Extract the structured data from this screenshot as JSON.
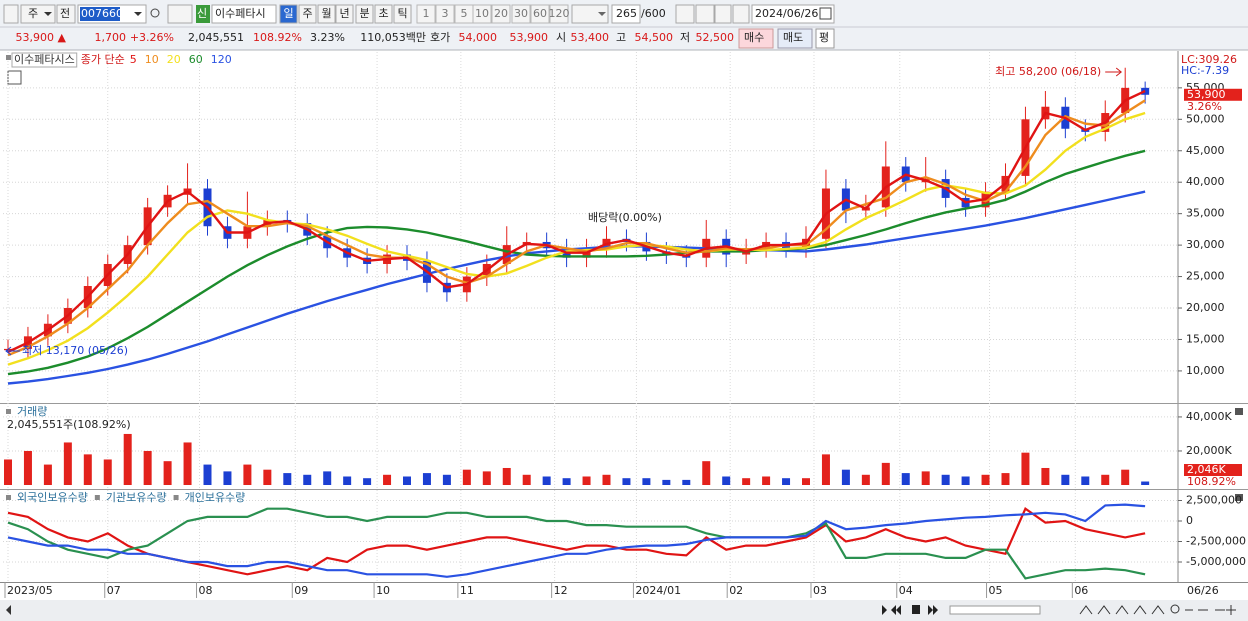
{
  "toolbar": {
    "period": "주",
    "prev": "전",
    "code": "007660",
    "new": "신",
    "name": "이수페타시",
    "timeframes": [
      "일",
      "주",
      "월",
      "년",
      "분",
      "초",
      "틱"
    ],
    "intervals": [
      "1",
      "3",
      "5",
      "10",
      "20",
      "30",
      "60",
      "120"
    ],
    "count": "265",
    "max": "/600",
    "date": "2024/06/26"
  },
  "quote": {
    "price": "53,900 ▲",
    "change": "1,700",
    "rate": "+3.26%",
    "volume": "2,045,551",
    "volume_ratio": "108.92%",
    "turnover_rate": "3.23%",
    "amount": "110,053백만",
    "ask_label": "호가",
    "ask": "54,000",
    "bid": "53,900",
    "open_label": "시",
    "open": "53,400",
    "high_label": "고",
    "high": "54,500",
    "low_label": "저",
    "low": "52,500",
    "buy": "매수",
    "sell": "매도",
    "avg": "평"
  },
  "chart_data": [
    {
      "type": "candlestick",
      "title": "이수페타시스",
      "legend_title": "종가 단순",
      "open": [
        13300,
        13500,
        15500,
        17500,
        20000,
        23500,
        27000,
        30000,
        36000,
        38000,
        39000,
        33000,
        31000,
        33000,
        34000,
        33500,
        31500,
        29500,
        28000,
        27000,
        28500,
        27500,
        24000,
        22500,
        25000,
        27000,
        30000,
        30500,
        29500,
        28000,
        29500,
        31000,
        30500,
        29000,
        28500,
        28000,
        31000,
        28500,
        29500,
        30500,
        29500,
        31000,
        39000,
        35500,
        36000,
        42500,
        40000,
        40500,
        37500,
        36000,
        38500,
        41000,
        50000,
        52000,
        48500,
        48000,
        51000,
        55000
      ],
      "high": [
        15000,
        17000,
        19000,
        21500,
        25000,
        28500,
        31500,
        37500,
        39500,
        43000,
        40500,
        34500,
        38500,
        35500,
        35500,
        35000,
        33000,
        31000,
        29500,
        30000,
        30000,
        29000,
        25500,
        26500,
        28500,
        33000,
        32000,
        32000,
        31000,
        31000,
        33000,
        32500,
        32000,
        30500,
        30000,
        34000,
        32500,
        31000,
        32000,
        32000,
        33000,
        42000,
        40500,
        38000,
        46500,
        44000,
        44000,
        42000,
        39000,
        40000,
        43000,
        52000,
        54500,
        53500,
        50000,
        53000,
        58200,
        56000
      ],
      "low": [
        13170,
        12000,
        14000,
        16000,
        18500,
        22000,
        25500,
        28500,
        34500,
        36500,
        31500,
        29500,
        29500,
        31500,
        32000,
        30000,
        28000,
        26500,
        25500,
        25500,
        26000,
        22500,
        21000,
        21000,
        23500,
        25500,
        28500,
        28000,
        26500,
        26500,
        28000,
        29000,
        27500,
        27000,
        26500,
        26500,
        26500,
        27000,
        28000,
        28000,
        28000,
        29500,
        33500,
        34000,
        34500,
        38500,
        38500,
        36000,
        34500,
        34500,
        37000,
        39500,
        48500,
        47000,
        46500,
        46500,
        49500,
        52500
      ],
      "close": [
        13500,
        15500,
        17500,
        20000,
        23500,
        27000,
        30000,
        36000,
        38000,
        39000,
        33000,
        31000,
        33000,
        34000,
        33500,
        31500,
        29500,
        28000,
        27000,
        28500,
        27500,
        24000,
        22500,
        25000,
        27000,
        30000,
        30500,
        29500,
        28000,
        29500,
        31000,
        30500,
        29000,
        28500,
        28000,
        31000,
        28500,
        29500,
        30500,
        29500,
        31000,
        39000,
        35500,
        36000,
        42500,
        40000,
        40500,
        37500,
        36000,
        38500,
        41000,
        50000,
        52000,
        48500,
        48000,
        51000,
        55000,
        53900
      ],
      "up_color": "#e3221c",
      "down_color": "#1c3fd2",
      "series": [
        {
          "name": "5",
          "color": "#e01414",
          "values": [
            13000,
            14500,
            16500,
            18800,
            21800,
            25300,
            28500,
            33000,
            37000,
            38500,
            36000,
            32000,
            32000,
            33500,
            33800,
            32500,
            30500,
            28800,
            27500,
            27800,
            28000,
            25800,
            23300,
            23800,
            26000,
            28500,
            30200,
            30000,
            28800,
            28800,
            30200,
            30800,
            29800,
            28800,
            28300,
            29500,
            29800,
            29000,
            30000,
            30000,
            30300,
            35000,
            37200,
            35800,
            39200,
            41200,
            40300,
            39000,
            36800,
            37300,
            39800,
            45500,
            51000,
            50200,
            48300,
            49500,
            53000,
            54500
          ]
        },
        {
          "name": "10",
          "color": "#ee8c1e",
          "values": [
            12500,
            13800,
            15500,
            17500,
            20000,
            23000,
            26000,
            30000,
            33500,
            36500,
            37000,
            35000,
            33000,
            33000,
            33500,
            33000,
            31500,
            30000,
            28500,
            28000,
            28000,
            27000,
            25000,
            24000,
            25000,
            27000,
            29000,
            30000,
            29500,
            29000,
            29500,
            30300,
            30300,
            29500,
            28800,
            29000,
            29500,
            29300,
            29500,
            30000,
            30000,
            32500,
            35500,
            36500,
            37500,
            40000,
            40800,
            39700,
            38000,
            37000,
            38500,
            42500,
            47500,
            50500,
            49300,
            49000,
            51000,
            53000
          ]
        },
        {
          "name": "20",
          "color": "#f2e01e",
          "values": [
            11000,
            12000,
            13300,
            14800,
            16800,
            19300,
            22000,
            25000,
            28500,
            32000,
            34500,
            35500,
            35000,
            34000,
            33500,
            33300,
            32500,
            31500,
            30200,
            29000,
            28300,
            27600,
            26500,
            25400,
            25000,
            25500,
            26700,
            28000,
            29000,
            29200,
            29300,
            29800,
            30000,
            29800,
            29300,
            29000,
            29300,
            29300,
            29200,
            29400,
            29600,
            30500,
            32500,
            34300,
            35700,
            37200,
            38800,
            39500,
            39000,
            38300,
            38200,
            39500,
            42000,
            45000,
            47200,
            48500,
            50000,
            51000
          ]
        },
        {
          "name": "60",
          "color": "#1c8c2c",
          "values": [
            9500,
            9900,
            10500,
            11300,
            12300,
            13600,
            15200,
            17000,
            19000,
            21000,
            23000,
            25000,
            26800,
            28400,
            29800,
            31000,
            32000,
            32700,
            32900,
            32800,
            32500,
            32000,
            31300,
            30600,
            29800,
            29000,
            28500,
            28300,
            28200,
            28200,
            28200,
            28200,
            28300,
            28500,
            28800,
            29000,
            29000,
            29000,
            29200,
            29300,
            29500,
            30000,
            30800,
            31600,
            32500,
            33500,
            34400,
            35200,
            35800,
            36400,
            37200,
            38500,
            40000,
            41300,
            42300,
            43300,
            44200,
            45000
          ]
        },
        {
          "name": "120",
          "color": "#2a52e2",
          "values": [
            8000,
            8300,
            8700,
            9200,
            9700,
            10300,
            11000,
            11800,
            12700,
            13700,
            14700,
            15800,
            16900,
            18000,
            19100,
            20100,
            21100,
            22000,
            22900,
            23800,
            24600,
            25400,
            26200,
            26900,
            27600,
            28200,
            28700,
            29000,
            29300,
            29500,
            29700,
            29800,
            29800,
            29700,
            29600,
            29500,
            29400,
            29300,
            29200,
            29100,
            29000,
            29300,
            29700,
            30100,
            30600,
            31100,
            31600,
            32100,
            32600,
            33100,
            33700,
            34300,
            35000,
            35700,
            36400,
            37100,
            37800,
            38500
          ]
        }
      ],
      "ylim": [
        4900,
        60700
      ],
      "yticks": [
        {
          "value": 10000,
          "label": "10,000"
        },
        {
          "value": 15000,
          "label": "15,000"
        },
        {
          "value": 20000,
          "label": "20,000"
        },
        {
          "value": 25000,
          "label": "25,000"
        },
        {
          "value": 30000,
          "label": "30,000"
        },
        {
          "value": 35000,
          "label": "35,000"
        },
        {
          "value": 40000,
          "label": "40,000"
        },
        {
          "value": 45000,
          "label": "45,000"
        },
        {
          "value": 50000,
          "label": "50,000"
        },
        {
          "value": 55000,
          "label": "55,000"
        }
      ],
      "grid": true,
      "annotations": [
        {
          "text": "최고 58,200 (06/18)",
          "value": 58200
        },
        {
          "text": "최저 13,170 (05/26)",
          "value": 13170
        },
        {
          "text": "배당락(0.00%)"
        }
      ],
      "last_price": {
        "value": 53900,
        "label": "53,900"
      },
      "last_change": "3.26%",
      "axis_notes": [
        "LC:309.26",
        "HC:-7.39"
      ]
    },
    {
      "type": "bar",
      "title": "거래량",
      "subtitle": "2,045,551주(108.92%)",
      "values": [
        15000,
        20000,
        12000,
        25000,
        18000,
        15000,
        30000,
        20000,
        14000,
        25000,
        12000,
        8000,
        12000,
        9000,
        7000,
        6000,
        8000,
        5000,
        4000,
        6000,
        5000,
        7000,
        6000,
        9000,
        8000,
        10000,
        6000,
        5000,
        4000,
        5000,
        6000,
        4000,
        4000,
        3000,
        3000,
        14000,
        5000,
        4000,
        5000,
        4000,
        4000,
        18000,
        9000,
        6000,
        13000,
        7000,
        8000,
        6000,
        5000,
        6000,
        7000,
        19000,
        10000,
        6000,
        5000,
        6000,
        9000,
        2046
      ],
      "ylim": [
        0,
        47600
      ],
      "yticks": [
        {
          "value": 40000,
          "label": "40,000K"
        },
        {
          "value": 20000,
          "label": "20,000K"
        }
      ],
      "last_value": {
        "value": 2046,
        "label": "2,046K"
      },
      "ratio": "108.92%"
    },
    {
      "type": "line",
      "series": [
        {
          "name": "외국인보유수량",
          "color": "#e01414",
          "values": [
            1000000,
            500000,
            -1000000,
            -2000000,
            -2500000,
            -1500000,
            -3000000,
            -4000000,
            -4500000,
            -5000000,
            -5500000,
            -6000000,
            -6500000,
            -6000000,
            -5500000,
            -6000000,
            -4500000,
            -5000000,
            -3500000,
            -3000000,
            -3000000,
            -3500000,
            -3000000,
            -2500000,
            -2000000,
            -2000000,
            -2500000,
            -3000000,
            -3500000,
            -3000000,
            -3000000,
            -3500000,
            -3500000,
            -4000000,
            -4200000,
            -2000000,
            -3500000,
            -3000000,
            -3000000,
            -2500000,
            -2000000,
            -500000,
            -2500000,
            -2000000,
            -1000000,
            -2000000,
            -2500000,
            -2000000,
            -3000000,
            -3500000,
            -4000000,
            1500000,
            -200000,
            0,
            -1000000,
            -1500000,
            -2000000,
            -1500000
          ]
        },
        {
          "name": "기관보유수량",
          "color": "#2a9050",
          "values": [
            -200000,
            -1000000,
            -2500000,
            -3500000,
            -4000000,
            -4500000,
            -3500000,
            -3000000,
            -1500000,
            0,
            500000,
            500000,
            500000,
            1500000,
            1500000,
            1000000,
            500000,
            500000,
            0,
            500000,
            500000,
            500000,
            1000000,
            1000000,
            500000,
            500000,
            500000,
            0,
            0,
            -500000,
            -500000,
            -700000,
            -700000,
            -700000,
            -700000,
            -1500000,
            -2000000,
            -2000000,
            -2000000,
            -2000000,
            -1500000,
            -300000,
            -4500000,
            -4500000,
            -4000000,
            -4000000,
            -4000000,
            -4500000,
            -4500000,
            -3500000,
            -3500000,
            -7000000,
            -6500000,
            -6000000,
            -6000000,
            -5800000,
            -6000000,
            -6500000
          ]
        },
        {
          "name": "개인보유수량",
          "color": "#2a52e2",
          "values": [
            -2000000,
            -2500000,
            -3000000,
            -3000000,
            -3500000,
            -3500000,
            -4000000,
            -4000000,
            -4500000,
            -5000000,
            -5000000,
            -5500000,
            -5500000,
            -5000000,
            -5000000,
            -5500000,
            -6000000,
            -6000000,
            -6500000,
            -6500000,
            -6500000,
            -6500000,
            -6800000,
            -6500000,
            -6000000,
            -5500000,
            -5000000,
            -4500000,
            -4000000,
            -4000000,
            -3500000,
            -3200000,
            -3000000,
            -3000000,
            -2800000,
            -2300000,
            -2000000,
            -2000000,
            -2000000,
            -2000000,
            -1800000,
            0,
            -1000000,
            -800000,
            -500000,
            -300000,
            0,
            200000,
            400000,
            500000,
            700000,
            800000,
            1000000,
            800000,
            0,
            1900000,
            2000000,
            1800000
          ]
        }
      ],
      "ylim": [
        -7440000,
        3780000
      ],
      "yticks": [
        {
          "value": 2500000,
          "label": "2,500,000"
        },
        0,
        {
          "value": -2500000,
          "label": "-2,500,000"
        },
        {
          "value": -5000000,
          "label": "-5,000,000"
        }
      ],
      "xticks": [
        {
          "value": 0,
          "label": "2023/05"
        },
        {
          "value": 5,
          "label": "07"
        },
        {
          "value": 9.6,
          "label": "08"
        },
        {
          "value": 14.4,
          "label": "09"
        },
        {
          "value": 18.5,
          "label": "10"
        },
        {
          "value": 22.7,
          "label": "11"
        },
        {
          "value": 27.4,
          "label": "12"
        },
        {
          "value": 31.5,
          "label": "2024/01"
        },
        {
          "value": 36.2,
          "label": "02"
        },
        {
          "value": 40.4,
          "label": "03"
        },
        {
          "value": 44.7,
          "label": "04"
        },
        {
          "value": 49.2,
          "label": "05"
        },
        {
          "value": 53.5,
          "label": "06"
        }
      ],
      "x_end_label": "06/26"
    }
  ]
}
